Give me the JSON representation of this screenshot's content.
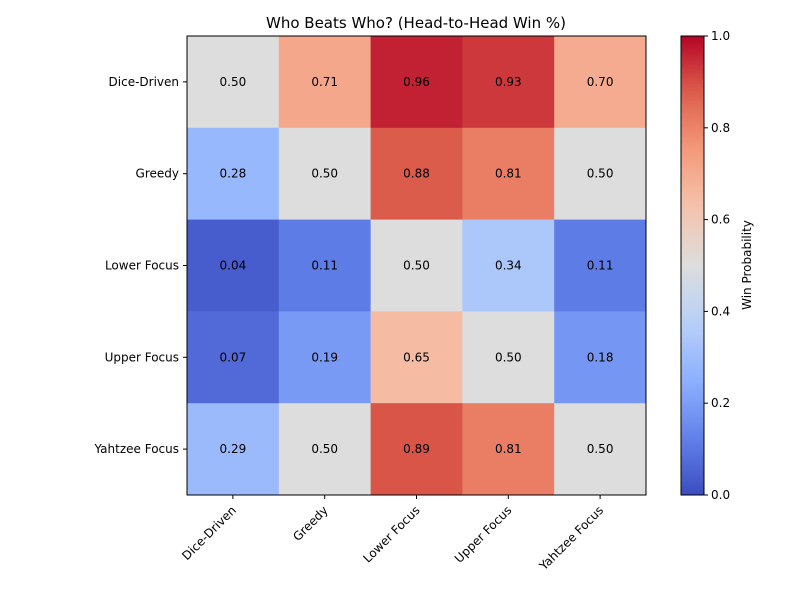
{
  "chart_data": {
    "type": "heatmap",
    "title": "Who Beats Who? (Head-to-Head Win %)",
    "rows": [
      "Dice-Driven",
      "Greedy",
      "Lower Focus",
      "Upper Focus",
      "Yahtzee Focus"
    ],
    "columns": [
      "Dice-Driven",
      "Greedy",
      "Lower Focus",
      "Upper Focus",
      "Yahtzee Focus"
    ],
    "values": [
      [
        0.5,
        0.71,
        0.96,
        0.93,
        0.7
      ],
      [
        0.28,
        0.5,
        0.88,
        0.81,
        0.5
      ],
      [
        0.04,
        0.11,
        0.5,
        0.34,
        0.11
      ],
      [
        0.07,
        0.19,
        0.65,
        0.5,
        0.18
      ],
      [
        0.29,
        0.5,
        0.89,
        0.81,
        0.5
      ]
    ],
    "value_format": "2 decimals",
    "colormap": "coolwarm",
    "vmin": 0,
    "vmax": 1,
    "colorbar": {
      "label": "Win Probability",
      "ticks": [
        "0.0",
        "0.2",
        "0.4",
        "0.6",
        "0.8",
        "1.0"
      ]
    },
    "grid": false
  }
}
